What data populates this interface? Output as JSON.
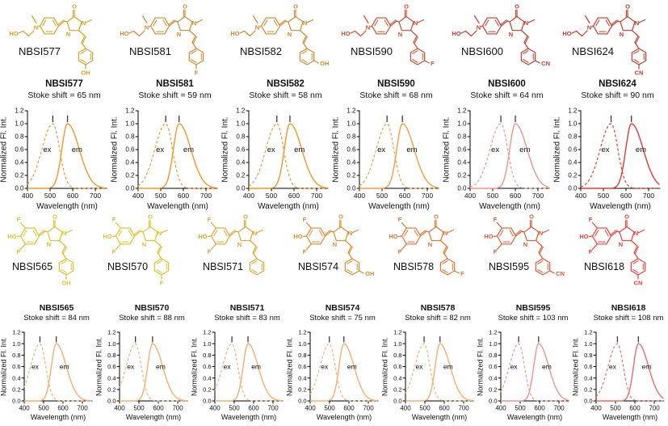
{
  "rows": {
    "top_indices": [
      0,
      1,
      2,
      3,
      4,
      5
    ],
    "bottom_indices": [
      6,
      7,
      8,
      9,
      10,
      11,
      12
    ]
  },
  "curve_shape": {
    "ex_sigma_left_nm": 48,
    "ex_sigma_right_nm": 30,
    "em_sigma_left_nm": 25,
    "em_sigma_right_nm": 52
  },
  "peak_marker_color": "#3a3a3a",
  "text_color": "#111111",
  "axis_color": "#000000",
  "curve_labels": {
    "ex": "ex",
    "em": "em"
  },
  "structures": [
    {
      "name": "NBSI577",
      "color": "#D7A021",
      "donor": "amine",
      "substituent": "OH",
      "substituent_position": "para"
    },
    {
      "name": "NBSI581",
      "color": "#D2872E",
      "donor": "amine",
      "substituent": "F",
      "substituent_position": "para"
    },
    {
      "name": "NBSI582",
      "color": "#D2872E",
      "donor": "amine",
      "substituent": "OH",
      "substituent_position": "meta"
    },
    {
      "name": "NBSI590",
      "color": "#CE4B2B",
      "donor": "amine",
      "substituent": "F",
      "substituent_position": "meta"
    },
    {
      "name": "NBSI600",
      "color": "#C63A2B",
      "donor": "amine",
      "substituent": "CN",
      "substituent_position": "meta"
    },
    {
      "name": "NBSI624",
      "color": "#C63A2B",
      "donor": "amine",
      "substituent": "CN",
      "substituent_position": "para"
    },
    {
      "name": "NBSI565",
      "color": "#DDC226",
      "donor": "phenol",
      "substituent": "OH",
      "substituent_position": "para"
    },
    {
      "name": "NBSI570",
      "color": "#DDC226",
      "donor": "phenol",
      "substituent": "F",
      "substituent_position": "para"
    },
    {
      "name": "NBSI571",
      "color": "#DFA532",
      "donor": "phenol",
      "substituent": "",
      "substituent_position": "none"
    },
    {
      "name": "NBSI574",
      "color": "#DD8A2E",
      "donor": "phenol",
      "substituent": "OH",
      "substituent_position": "meta"
    },
    {
      "name": "NBSI578",
      "color": "#E2712E",
      "donor": "phenol",
      "substituent": "F",
      "substituent_position": "meta"
    },
    {
      "name": "NBSI595",
      "color": "#DB5A33",
      "donor": "phenol",
      "substituent": "CN",
      "substituent_position": "meta"
    },
    {
      "name": "NBSI618",
      "color": "#F63B33",
      "donor": "phenol",
      "substituent": "CN",
      "substituent_position": "para"
    }
  ],
  "chart_data": [
    {
      "type": "line",
      "title": "NBSI577",
      "subtitle": "Stoke shift = 65 nm",
      "stoke_shift_nm": 65,
      "xlabel": "Wavelength (nm)",
      "ylabel": "Normalized Fl. Int.",
      "xlim": [
        400,
        750
      ],
      "ylim": [
        0,
        1.2
      ],
      "x_ticks": [
        400,
        500,
        600,
        700
      ],
      "y_ticks": [
        0.0,
        0.2,
        0.4,
        0.6,
        0.8,
        1.0,
        1.2
      ],
      "grid": false,
      "color": "#F2952C",
      "series": [
        {
          "name": "ex",
          "style": "dashed",
          "peak_nm": 512,
          "peak_value": 1.0
        },
        {
          "name": "em",
          "style": "solid",
          "peak_nm": 577,
          "peak_value": 1.0
        }
      ]
    },
    {
      "type": "line",
      "title": "NBSI581",
      "subtitle": "Stoke shift = 59 nm",
      "stoke_shift_nm": 59,
      "xlabel": "Wavelength (nm)",
      "ylabel": "Normalized Fl. Int.",
      "xlim": [
        400,
        750
      ],
      "ylim": [
        0,
        1.2
      ],
      "x_ticks": [
        400,
        500,
        600,
        700
      ],
      "y_ticks": [
        0.0,
        0.2,
        0.4,
        0.6,
        0.8,
        1.0,
        1.2
      ],
      "grid": false,
      "color": "#F2952C",
      "series": [
        {
          "name": "ex",
          "style": "dashed",
          "peak_nm": 522,
          "peak_value": 1.0
        },
        {
          "name": "em",
          "style": "solid",
          "peak_nm": 581,
          "peak_value": 1.0
        }
      ]
    },
    {
      "type": "line",
      "title": "NBSI582",
      "subtitle": "Stoke shift = 58 nm",
      "stoke_shift_nm": 58,
      "xlabel": "Wavelength (nm)",
      "ylabel": "Normalized Fl. Int.",
      "xlim": [
        400,
        750
      ],
      "ylim": [
        0,
        1.2
      ],
      "x_ticks": [
        400,
        500,
        600,
        700
      ],
      "y_ticks": [
        0.0,
        0.2,
        0.4,
        0.6,
        0.8,
        1.0,
        1.2
      ],
      "grid": false,
      "color": "#F2952C",
      "series": [
        {
          "name": "ex",
          "style": "dashed",
          "peak_nm": 524,
          "peak_value": 1.0
        },
        {
          "name": "em",
          "style": "solid",
          "peak_nm": 582,
          "peak_value": 1.0
        }
      ]
    },
    {
      "type": "line",
      "title": "NBSI590",
      "subtitle": "Stoke shift = 68 nm",
      "stoke_shift_nm": 68,
      "xlabel": "Wavelength (nm)",
      "ylabel": "Normalized Fl. Int.",
      "xlim": [
        400,
        750
      ],
      "ylim": [
        0,
        1.2
      ],
      "x_ticks": [
        400,
        500,
        600,
        700
      ],
      "y_ticks": [
        0.0,
        0.2,
        0.4,
        0.6,
        0.8,
        1.0,
        1.2
      ],
      "grid": false,
      "color": "#F49C3F",
      "series": [
        {
          "name": "ex",
          "style": "dashed",
          "peak_nm": 522,
          "peak_value": 1.0
        },
        {
          "name": "em",
          "style": "solid",
          "peak_nm": 590,
          "peak_value": 1.0
        }
      ]
    },
    {
      "type": "line",
      "title": "NBSI600",
      "subtitle": "Stoke shift = 64 nm",
      "stoke_shift_nm": 64,
      "xlabel": "Wavelength (nm)",
      "ylabel": "Normalized Fl. Int.",
      "xlim": [
        400,
        750
      ],
      "ylim": [
        0,
        1.2
      ],
      "x_ticks": [
        400,
        500,
        600,
        700
      ],
      "y_ticks": [
        0.0,
        0.2,
        0.4,
        0.6,
        0.8,
        1.0,
        1.2
      ],
      "grid": false,
      "color": "#F2928F",
      "series": [
        {
          "name": "ex",
          "style": "dashed",
          "peak_nm": 536,
          "peak_value": 1.0
        },
        {
          "name": "em",
          "style": "solid",
          "peak_nm": 600,
          "peak_value": 1.0
        }
      ]
    },
    {
      "type": "line",
      "title": "NBSI624",
      "subtitle": "Stoke shift = 90 nm",
      "stoke_shift_nm": 90,
      "xlabel": "Wavelength (nm)",
      "ylabel": "Normalized Fl. Int.",
      "xlim": [
        400,
        750
      ],
      "ylim": [
        0,
        1.2
      ],
      "x_ticks": [
        400,
        500,
        600,
        700
      ],
      "y_ticks": [
        0.0,
        0.2,
        0.4,
        0.6,
        0.8,
        1.0,
        1.2
      ],
      "grid": false,
      "color": "#E23B34",
      "series": [
        {
          "name": "ex",
          "style": "dashed",
          "peak_nm": 534,
          "peak_value": 1.0
        },
        {
          "name": "em",
          "style": "solid",
          "peak_nm": 624,
          "peak_value": 1.0
        }
      ]
    },
    {
      "type": "line",
      "title": "NBSI565",
      "subtitle": "Stoke shift = 84 nm",
      "stoke_shift_nm": 84,
      "xlabel": "Wavelength (nm)",
      "ylabel": "Normalized Fl. Int.",
      "xlim": [
        400,
        750
      ],
      "ylim": [
        0,
        1.2
      ],
      "x_ticks": [
        400,
        500,
        600,
        700
      ],
      "y_ticks": [
        0.0,
        0.2,
        0.4,
        0.6,
        0.8,
        1.0,
        1.2
      ],
      "grid": false,
      "color": "#F5AE6E",
      "series": [
        {
          "name": "ex",
          "style": "dashed",
          "peak_nm": 481,
          "peak_value": 1.0
        },
        {
          "name": "em",
          "style": "solid",
          "peak_nm": 565,
          "peak_value": 1.0
        }
      ]
    },
    {
      "type": "line",
      "title": "NBSI570",
      "subtitle": "Stoke shift = 88 nm",
      "stoke_shift_nm": 88,
      "xlabel": "Wavelength (nm)",
      "ylabel": "Normalized Fl. Int.",
      "xlim": [
        400,
        750
      ],
      "ylim": [
        0,
        1.2
      ],
      "x_ticks": [
        400,
        500,
        600,
        700
      ],
      "y_ticks": [
        0.0,
        0.2,
        0.4,
        0.6,
        0.8,
        1.0,
        1.2
      ],
      "grid": false,
      "color": "#F5AE6E",
      "series": [
        {
          "name": "ex",
          "style": "dashed",
          "peak_nm": 482,
          "peak_value": 1.0
        },
        {
          "name": "em",
          "style": "solid",
          "peak_nm": 570,
          "peak_value": 1.0
        }
      ]
    },
    {
      "type": "line",
      "title": "NBSI571",
      "subtitle": "Stoke shift = 83 nm",
      "stoke_shift_nm": 83,
      "xlabel": "Wavelength (nm)",
      "ylabel": "Normalized Fl. Int.",
      "xlim": [
        400,
        750
      ],
      "ylim": [
        0,
        1.2
      ],
      "x_ticks": [
        400,
        500,
        600,
        700
      ],
      "y_ticks": [
        0.0,
        0.2,
        0.4,
        0.6,
        0.8,
        1.0,
        1.2
      ],
      "grid": false,
      "color": "#F5AE6E",
      "series": [
        {
          "name": "ex",
          "style": "dashed",
          "peak_nm": 488,
          "peak_value": 1.0
        },
        {
          "name": "em",
          "style": "solid",
          "peak_nm": 571,
          "peak_value": 1.0
        }
      ]
    },
    {
      "type": "line",
      "title": "NBSI574",
      "subtitle": "Stoke shift = 75 nm",
      "stoke_shift_nm": 75,
      "xlabel": "Wavelength (nm)",
      "ylabel": "Normalized Fl. Int.",
      "xlim": [
        400,
        750
      ],
      "ylim": [
        0,
        1.2
      ],
      "x_ticks": [
        400,
        500,
        600,
        700
      ],
      "y_ticks": [
        0.0,
        0.2,
        0.4,
        0.6,
        0.8,
        1.0,
        1.2
      ],
      "grid": false,
      "color": "#F5AE6E",
      "series": [
        {
          "name": "ex",
          "style": "dashed",
          "peak_nm": 499,
          "peak_value": 1.0
        },
        {
          "name": "em",
          "style": "solid",
          "peak_nm": 574,
          "peak_value": 1.0
        }
      ]
    },
    {
      "type": "line",
      "title": "NBSI578",
      "subtitle": "Stoke shift = 82 nm",
      "stoke_shift_nm": 82,
      "xlabel": "Wavelength (nm)",
      "ylabel": "Normalized Fl. Int.",
      "xlim": [
        400,
        750
      ],
      "ylim": [
        0,
        1.2
      ],
      "x_ticks": [
        400,
        500,
        600,
        700
      ],
      "y_ticks": [
        0.0,
        0.2,
        0.4,
        0.6,
        0.8,
        1.0,
        1.2
      ],
      "grid": false,
      "color": "#F5AE6E",
      "series": [
        {
          "name": "ex",
          "style": "dashed",
          "peak_nm": 496,
          "peak_value": 1.0
        },
        {
          "name": "em",
          "style": "solid",
          "peak_nm": 578,
          "peak_value": 1.0
        }
      ]
    },
    {
      "type": "line",
      "title": "NBSI595",
      "subtitle": "Stoke shift = 103 nm",
      "stoke_shift_nm": 103,
      "xlabel": "Wavelength (nm)",
      "ylabel": "Normalized Fl. Int.",
      "xlim": [
        400,
        750
      ],
      "ylim": [
        0,
        1.2
      ],
      "x_ticks": [
        400,
        500,
        600,
        700
      ],
      "y_ticks": [
        0.0,
        0.2,
        0.4,
        0.6,
        0.8,
        1.0,
        1.2
      ],
      "grid": false,
      "color": "#F2928F",
      "series": [
        {
          "name": "ex",
          "style": "dashed",
          "peak_nm": 492,
          "peak_value": 1.0
        },
        {
          "name": "em",
          "style": "solid",
          "peak_nm": 595,
          "peak_value": 1.0
        }
      ]
    },
    {
      "type": "line",
      "title": "NBSI618",
      "subtitle": "Stoke shift = 108 nm",
      "stoke_shift_nm": 108,
      "xlabel": "Wavelength (nm)",
      "ylabel": "Normalized Fl. Int.",
      "xlim": [
        400,
        750
      ],
      "ylim": [
        0,
        1.2
      ],
      "x_ticks": [
        400,
        500,
        600,
        700
      ],
      "y_ticks": [
        0.0,
        0.2,
        0.4,
        0.6,
        0.8,
        1.0,
        1.2
      ],
      "grid": false,
      "color": "#EF6B66",
      "series": [
        {
          "name": "ex",
          "style": "dashed",
          "peak_nm": 510,
          "peak_value": 1.0
        },
        {
          "name": "em",
          "style": "solid",
          "peak_nm": 618,
          "peak_value": 1.0
        }
      ]
    }
  ]
}
